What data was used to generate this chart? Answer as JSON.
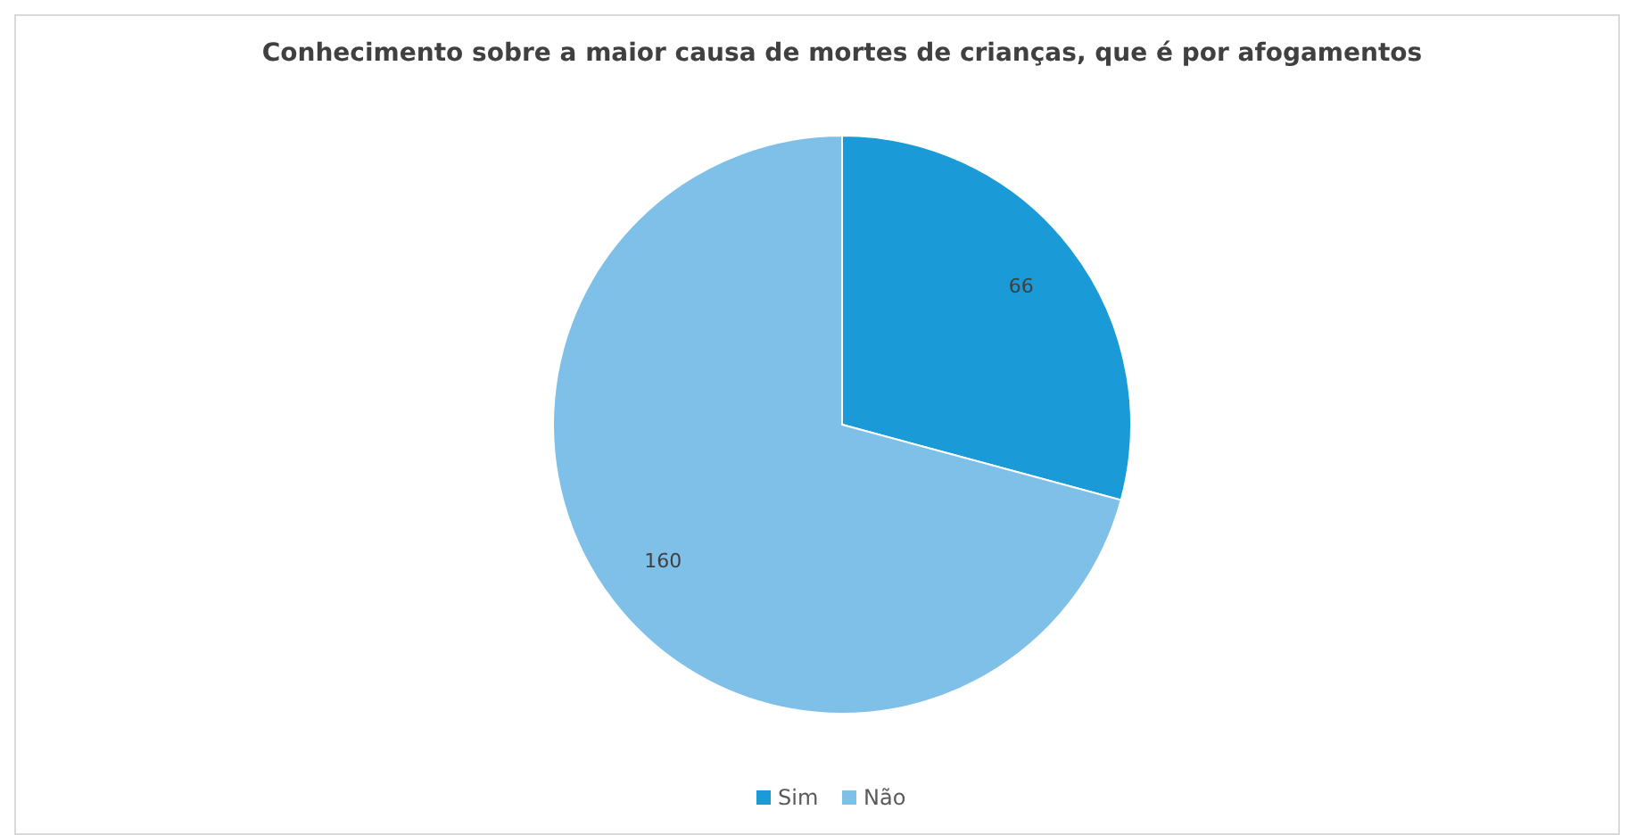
{
  "chart_data": {
    "type": "pie",
    "title": "Conhecimento sobre a maior causa de mortes de crianças, que é por afogamentos",
    "categories": [
      "Sim",
      "Não"
    ],
    "values": [
      66,
      160
    ],
    "colors": [
      "#1a9ad6",
      "#7fc0e8"
    ],
    "data_labels": true,
    "legend": "bottom"
  }
}
